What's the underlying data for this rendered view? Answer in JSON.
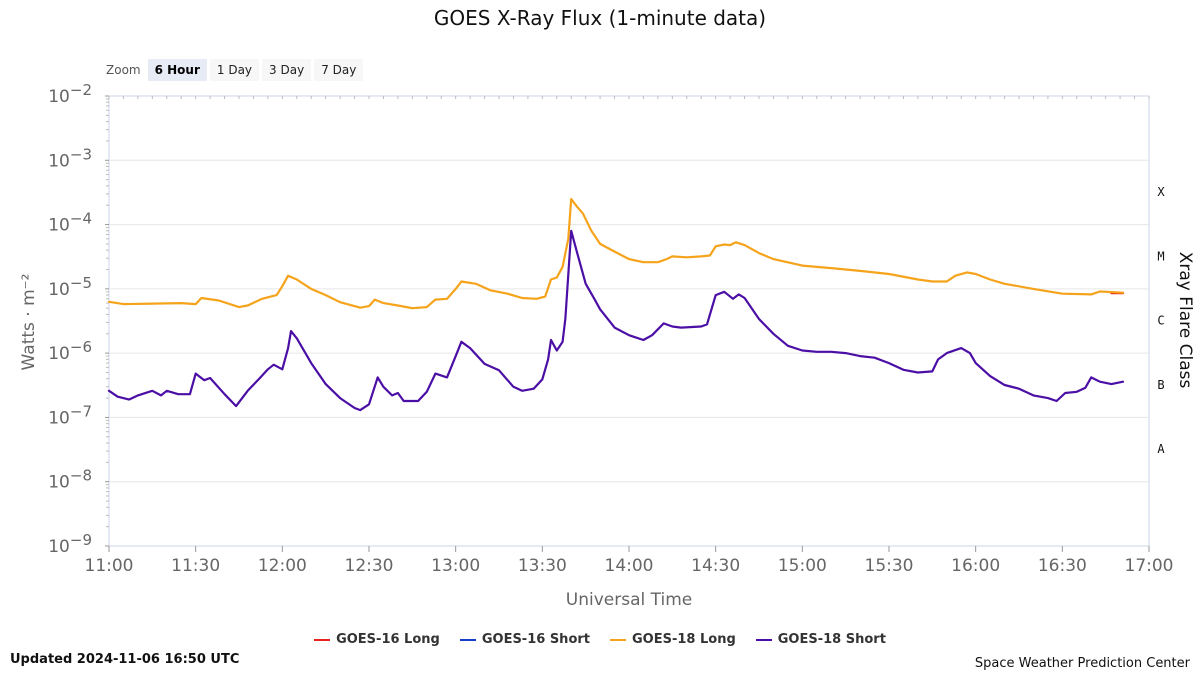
{
  "title": "GOES X-Ray Flux (1-minute data)",
  "zoom": {
    "label": "Zoom",
    "buttons": [
      "6 Hour",
      "1 Day",
      "3 Day",
      "7 Day"
    ],
    "active": "6 Hour"
  },
  "footer": {
    "updated": "Updated 2024-11-06 16:50 UTC",
    "credit": "Space Weather Prediction Center"
  },
  "chart_data": {
    "type": "line",
    "title": "GOES X-Ray Flux (1-minute data)",
    "xlabel": "Universal Time",
    "ylabel": "Watts · m⁻²",
    "y2label": "Xray Flare Class",
    "yscale": "log",
    "ylim": [
      1e-09,
      0.01
    ],
    "xlim": [
      "11:00",
      "17:00"
    ],
    "x_ticks": [
      "11:00",
      "11:30",
      "12:00",
      "12:30",
      "13:00",
      "13:30",
      "14:00",
      "14:30",
      "15:00",
      "15:30",
      "16:00",
      "16:30",
      "17:00"
    ],
    "y_ticks": [
      {
        "base": "10",
        "exp": "−2",
        "value": 0.01
      },
      {
        "base": "10",
        "exp": "−3",
        "value": 0.001
      },
      {
        "base": "10",
        "exp": "−4",
        "value": 0.0001
      },
      {
        "base": "10",
        "exp": "−5",
        "value": 1e-05
      },
      {
        "base": "10",
        "exp": "−6",
        "value": 1e-06
      },
      {
        "base": "10",
        "exp": "−7",
        "value": 1e-07
      },
      {
        "base": "10",
        "exp": "−8",
        "value": 1e-08
      },
      {
        "base": "10",
        "exp": "−9",
        "value": 1e-09
      }
    ],
    "flare_classes": [
      {
        "label": "X",
        "value": 0.00032
      },
      {
        "label": "M",
        "value": 3.2e-05
      },
      {
        "label": "C",
        "value": 3.2e-06
      },
      {
        "label": "B",
        "value": 3.2e-07
      },
      {
        "label": "A",
        "value": 3.2e-08
      }
    ],
    "grid": true,
    "legend_position": "bottom",
    "series": [
      {
        "name": "GOES-16 Long",
        "color": "#e8231d",
        "points": [
          [
            "16:47",
            8.6e-06
          ],
          [
            "16:51",
            8.6e-06
          ]
        ]
      },
      {
        "name": "GOES-16 Short",
        "color": "#1a3ccd",
        "points": []
      },
      {
        "name": "GOES-18 Long",
        "color": "#f5a31a",
        "points": [
          [
            "11:00",
            6.3e-06
          ],
          [
            "11:05",
            5.8e-06
          ],
          [
            "11:15",
            5.9e-06
          ],
          [
            "11:25",
            6e-06
          ],
          [
            "11:30",
            5.8e-06
          ],
          [
            "11:32",
            7.2e-06
          ],
          [
            "11:38",
            6.6e-06
          ],
          [
            "11:45",
            5.2e-06
          ],
          [
            "11:48",
            5.5e-06
          ],
          [
            "11:53",
            7e-06
          ],
          [
            "11:58",
            8e-06
          ],
          [
            "12:00",
            1.1e-05
          ],
          [
            "12:02",
            1.6e-05
          ],
          [
            "12:05",
            1.4e-05
          ],
          [
            "12:10",
            1e-05
          ],
          [
            "12:15",
            8e-06
          ],
          [
            "12:20",
            6.2e-06
          ],
          [
            "12:27",
            5.1e-06
          ],
          [
            "12:30",
            5.4e-06
          ],
          [
            "12:32",
            6.8e-06
          ],
          [
            "12:35",
            6e-06
          ],
          [
            "12:40",
            5.5e-06
          ],
          [
            "12:45",
            5e-06
          ],
          [
            "12:50",
            5.2e-06
          ],
          [
            "12:53",
            6.8e-06
          ],
          [
            "12:57",
            7e-06
          ],
          [
            "13:00",
            1e-05
          ],
          [
            "13:02",
            1.3e-05
          ],
          [
            "13:07",
            1.2e-05
          ],
          [
            "13:12",
            9.5e-06
          ],
          [
            "13:18",
            8.4e-06
          ],
          [
            "13:23",
            7.2e-06
          ],
          [
            "13:28",
            7e-06
          ],
          [
            "13:31",
            7.6e-06
          ],
          [
            "13:33",
            1.4e-05
          ],
          [
            "13:35",
            1.5e-05
          ],
          [
            "13:37",
            2.2e-05
          ],
          [
            "13:39",
            6e-05
          ],
          [
            "13:40",
            0.00025
          ],
          [
            "13:42",
            0.00019
          ],
          [
            "13:44",
            0.00015
          ],
          [
            "13:47",
            8e-05
          ],
          [
            "13:50",
            5e-05
          ],
          [
            "13:55",
            3.8e-05
          ],
          [
            "14:00",
            2.9e-05
          ],
          [
            "14:05",
            2.6e-05
          ],
          [
            "14:10",
            2.6e-05
          ],
          [
            "14:13",
            2.9e-05
          ],
          [
            "14:15",
            3.2e-05
          ],
          [
            "14:20",
            3.1e-05
          ],
          [
            "14:25",
            3.2e-05
          ],
          [
            "14:28",
            3.3e-05
          ],
          [
            "14:30",
            4.6e-05
          ],
          [
            "14:33",
            4.9e-05
          ],
          [
            "14:35",
            4.8e-05
          ],
          [
            "14:37",
            5.3e-05
          ],
          [
            "14:40",
            4.8e-05
          ],
          [
            "14:45",
            3.6e-05
          ],
          [
            "14:50",
            2.9e-05
          ],
          [
            "15:00",
            2.3e-05
          ],
          [
            "15:10",
            2.1e-05
          ],
          [
            "15:20",
            1.9e-05
          ],
          [
            "15:30",
            1.7e-05
          ],
          [
            "15:40",
            1.4e-05
          ],
          [
            "15:45",
            1.3e-05
          ],
          [
            "15:50",
            1.3e-05
          ],
          [
            "15:53",
            1.6e-05
          ],
          [
            "15:57",
            1.8e-05
          ],
          [
            "16:00",
            1.7e-05
          ],
          [
            "16:05",
            1.4e-05
          ],
          [
            "16:10",
            1.2e-05
          ],
          [
            "16:20",
            1e-05
          ],
          [
            "16:30",
            8.4e-06
          ],
          [
            "16:40",
            8.2e-06
          ],
          [
            "16:43",
            9.1e-06
          ],
          [
            "16:51",
            8.7e-06
          ]
        ]
      },
      {
        "name": "GOES-18 Short",
        "color": "#4b0fa6",
        "points": [
          [
            "11:00",
            2.6e-07
          ],
          [
            "11:03",
            2.1e-07
          ],
          [
            "11:07",
            1.9e-07
          ],
          [
            "11:10",
            2.2e-07
          ],
          [
            "11:15",
            2.6e-07
          ],
          [
            "11:18",
            2.2e-07
          ],
          [
            "11:20",
            2.6e-07
          ],
          [
            "11:24",
            2.3e-07
          ],
          [
            "11:28",
            2.3e-07
          ],
          [
            "11:30",
            4.8e-07
          ],
          [
            "11:33",
            3.8e-07
          ],
          [
            "11:35",
            4.1e-07
          ],
          [
            "11:40",
            2.3e-07
          ],
          [
            "11:44",
            1.5e-07
          ],
          [
            "11:48",
            2.6e-07
          ],
          [
            "11:52",
            4e-07
          ],
          [
            "11:55",
            5.6e-07
          ],
          [
            "11:57",
            6.6e-07
          ],
          [
            "12:00",
            5.6e-07
          ],
          [
            "12:02",
            1.2e-06
          ],
          [
            "12:03",
            2.2e-06
          ],
          [
            "12:05",
            1.7e-06
          ],
          [
            "12:10",
            7e-07
          ],
          [
            "12:15",
            3.3e-07
          ],
          [
            "12:20",
            2e-07
          ],
          [
            "12:25",
            1.4e-07
          ],
          [
            "12:27",
            1.3e-07
          ],
          [
            "12:30",
            1.6e-07
          ],
          [
            "12:33",
            4.2e-07
          ],
          [
            "12:35",
            3e-07
          ],
          [
            "12:38",
            2.2e-07
          ],
          [
            "12:40",
            2.4e-07
          ],
          [
            "12:42",
            1.8e-07
          ],
          [
            "12:47",
            1.8e-07
          ],
          [
            "12:50",
            2.5e-07
          ],
          [
            "12:53",
            4.8e-07
          ],
          [
            "12:57",
            4.2e-07
          ],
          [
            "13:00",
            9e-07
          ],
          [
            "13:02",
            1.5e-06
          ],
          [
            "13:05",
            1.2e-06
          ],
          [
            "13:10",
            6.8e-07
          ],
          [
            "13:15",
            5.4e-07
          ],
          [
            "13:20",
            3e-07
          ],
          [
            "13:23",
            2.6e-07
          ],
          [
            "13:27",
            2.8e-07
          ],
          [
            "13:30",
            3.9e-07
          ],
          [
            "13:32",
            8e-07
          ],
          [
            "13:33",
            1.6e-06
          ],
          [
            "13:35",
            1.1e-06
          ],
          [
            "13:37",
            1.5e-06
          ],
          [
            "13:38",
            3.5e-06
          ],
          [
            "13:40",
            8e-05
          ],
          [
            "13:42",
            3.7e-05
          ],
          [
            "13:45",
            1.2e-05
          ],
          [
            "13:48",
            7e-06
          ],
          [
            "13:50",
            4.8e-06
          ],
          [
            "13:55",
            2.5e-06
          ],
          [
            "14:00",
            1.9e-06
          ],
          [
            "14:05",
            1.6e-06
          ],
          [
            "14:08",
            1.9e-06
          ],
          [
            "14:12",
            2.9e-06
          ],
          [
            "14:15",
            2.6e-06
          ],
          [
            "14:18",
            2.5e-06
          ],
          [
            "14:25",
            2.6e-06
          ],
          [
            "14:27",
            2.8e-06
          ],
          [
            "14:30",
            8e-06
          ],
          [
            "14:33",
            9e-06
          ],
          [
            "14:36",
            7e-06
          ],
          [
            "14:38",
            8.2e-06
          ],
          [
            "14:40",
            7.2e-06
          ],
          [
            "14:45",
            3.4e-06
          ],
          [
            "14:50",
            2e-06
          ],
          [
            "14:55",
            1.3e-06
          ],
          [
            "15:00",
            1.1e-06
          ],
          [
            "15:05",
            1.05e-06
          ],
          [
            "15:10",
            1.05e-06
          ],
          [
            "15:15",
            1e-06
          ],
          [
            "15:20",
            9e-07
          ],
          [
            "15:25",
            8.5e-07
          ],
          [
            "15:30",
            7e-07
          ],
          [
            "15:35",
            5.5e-07
          ],
          [
            "15:40",
            5e-07
          ],
          [
            "15:45",
            5.2e-07
          ],
          [
            "15:47",
            8e-07
          ],
          [
            "15:50",
            1e-06
          ],
          [
            "15:55",
            1.2e-06
          ],
          [
            "15:58",
            1e-06
          ],
          [
            "16:00",
            7e-07
          ],
          [
            "16:05",
            4.4e-07
          ],
          [
            "16:10",
            3.2e-07
          ],
          [
            "16:15",
            2.8e-07
          ],
          [
            "16:20",
            2.2e-07
          ],
          [
            "16:25",
            2e-07
          ],
          [
            "16:28",
            1.8e-07
          ],
          [
            "16:31",
            2.4e-07
          ],
          [
            "16:35",
            2.5e-07
          ],
          [
            "16:38",
            2.9e-07
          ],
          [
            "16:40",
            4.2e-07
          ],
          [
            "16:43",
            3.6e-07
          ],
          [
            "16:47",
            3.3e-07
          ],
          [
            "16:51",
            3.6e-07
          ]
        ]
      }
    ]
  }
}
